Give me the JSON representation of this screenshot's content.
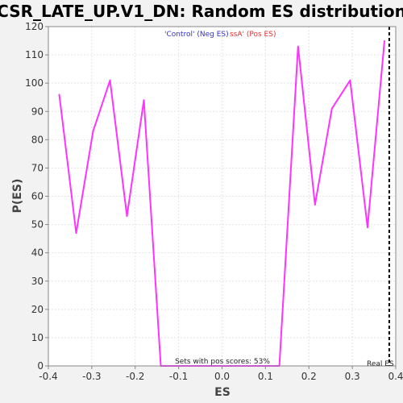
{
  "chart_data": {
    "type": "line",
    "title": "CSR_LATE_UP.V1_DN: Random ES distribution",
    "xlabel": "ES",
    "ylabel": "P(ES)",
    "xlim": [
      -0.4,
      0.4
    ],
    "ylim": [
      0,
      120
    ],
    "x_ticks": [
      "-0.4",
      "-0.3",
      "-0.2",
      "-0.1",
      "0.0",
      "0.1",
      "0.2",
      "0.3",
      "0.4"
    ],
    "y_ticks": [
      "0",
      "10",
      "20",
      "30",
      "40",
      "50",
      "60",
      "70",
      "80",
      "90",
      "100",
      "110",
      "120"
    ],
    "grid": true,
    "series": [
      {
        "color": "#ff33ff",
        "x": [
          -0.375,
          -0.336,
          -0.297,
          -0.258,
          -0.219,
          -0.18,
          -0.141,
          -0.102,
          -0.063,
          -0.024,
          0.015,
          0.054,
          0.093,
          0.132,
          0.175,
          0.214,
          0.253,
          0.295,
          0.335,
          0.374
        ],
        "y": [
          96,
          47,
          83,
          101,
          53,
          94,
          0,
          0,
          0,
          0,
          0,
          0,
          0,
          0,
          113,
          57,
          91,
          101,
          49,
          115
        ]
      }
    ],
    "legend": {
      "neg_label": "'Control' (Neg ES)",
      "neg_color": "#3333cc",
      "pos_label": "ssA' (Pos ES)",
      "pos_color": "#e03030",
      "placement": "top-center"
    },
    "real_es": {
      "value": 0.385,
      "label": "Real ES",
      "color": "#000000"
    },
    "annotation": "Sets with pos scores: 53%"
  }
}
